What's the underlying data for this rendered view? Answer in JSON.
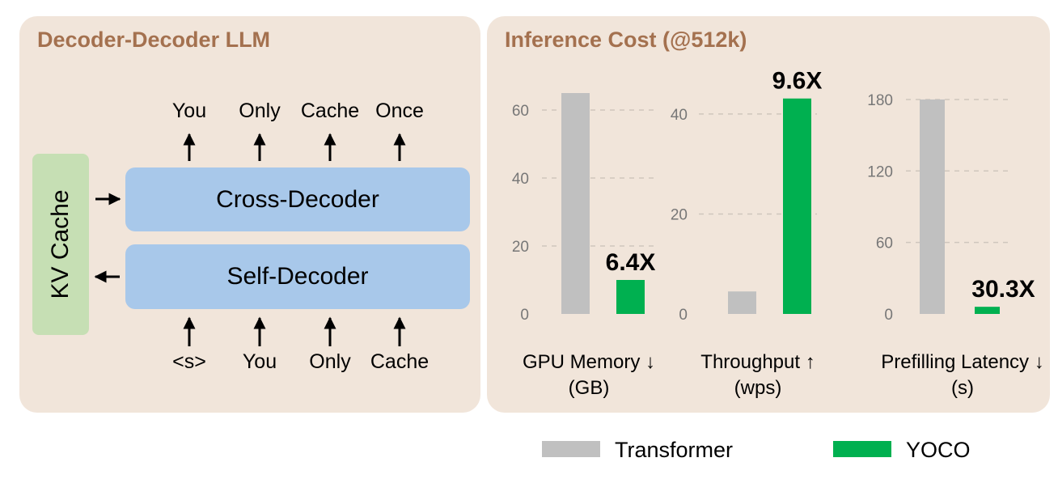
{
  "left_panel": {
    "title": "Decoder-Decoder LLM",
    "kv_cache_label": "KV Cache",
    "cross_decoder_label": "Cross-Decoder",
    "self_decoder_label": "Self-Decoder",
    "output_tokens": [
      "You",
      "Only",
      "Cache",
      "Once"
    ],
    "input_tokens": [
      "<s>",
      "You",
      "Only",
      "Cache"
    ]
  },
  "right_panel": {
    "title": "Inference Cost (@512k)"
  },
  "colors": {
    "panel_bg": "#f1e5da",
    "title": "#a4714f",
    "decoder_block": "#a8c8ea",
    "kv_cache": "#c6dfb4",
    "transformer": "#c0c0c0",
    "yoco": "#00b050"
  },
  "chart_data": [
    {
      "type": "bar",
      "xlabel": "GPU Memory ↓",
      "unit": "(GB)",
      "categories": [
        "Transformer",
        "YOCO"
      ],
      "values": [
        65,
        10
      ],
      "ylim": [
        0,
        68
      ],
      "yticks": [
        0,
        20,
        40,
        60
      ],
      "annotation": "6.4X",
      "grid": true
    },
    {
      "type": "bar",
      "xlabel": "Throughput ↑",
      "unit": "(wps)",
      "categories": [
        "Transformer",
        "YOCO"
      ],
      "values": [
        4.5,
        43.1
      ],
      "ylim": [
        0,
        46
      ],
      "yticks": [
        0,
        20,
        40
      ],
      "annotation": "9.6X",
      "grid": true
    },
    {
      "type": "bar",
      "xlabel": "Prefilling Latency ↓",
      "unit": "(s)",
      "categories": [
        "Transformer",
        "YOCO"
      ],
      "values": [
        180,
        6
      ],
      "ylim": [
        0,
        195
      ],
      "yticks": [
        0,
        60,
        120,
        180
      ],
      "annotation": "30.3X",
      "grid": true
    }
  ],
  "legend": [
    {
      "label": "Transformer",
      "color": "#c0c0c0"
    },
    {
      "label": "YOCO",
      "color": "#00b050"
    }
  ]
}
